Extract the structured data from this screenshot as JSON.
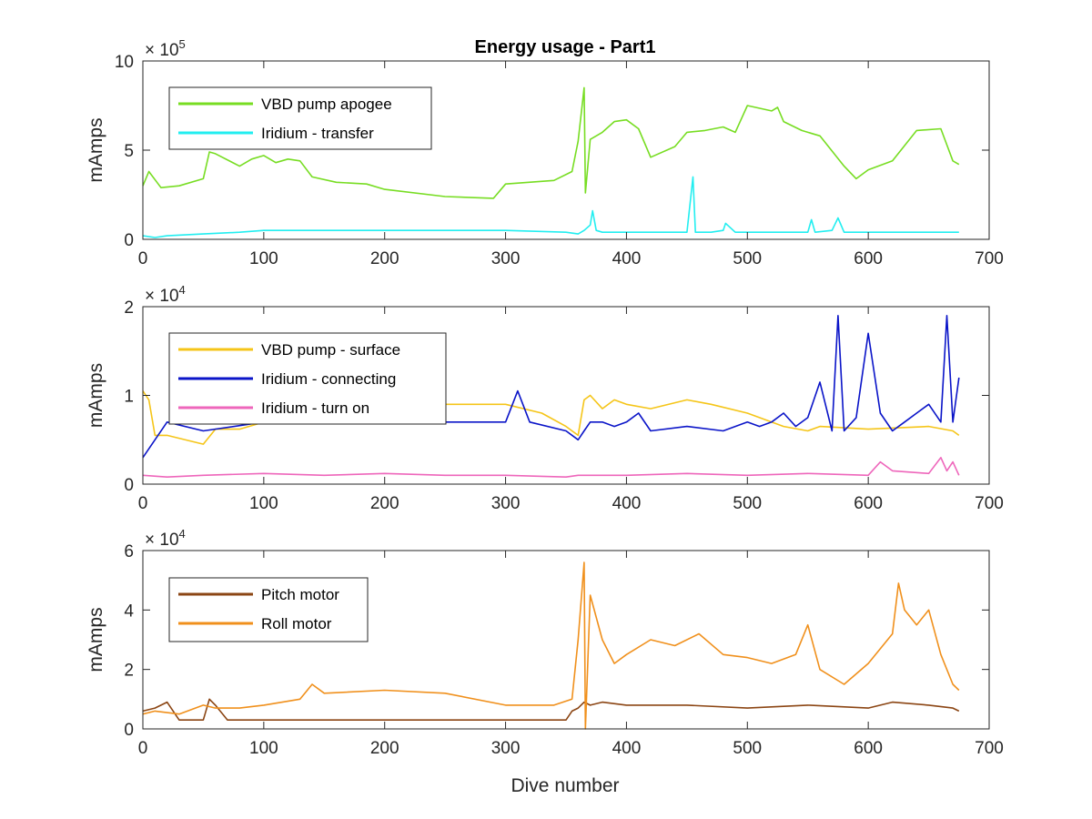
{
  "figure": {
    "title": "Energy usage - Part1",
    "xlabel": "Dive number"
  },
  "chart_data": [
    {
      "type": "line",
      "title": "Energy usage - Part1",
      "xlabel": "",
      "ylabel": "mAmps",
      "exponent_base": "× 10",
      "exponent": "5",
      "xlim": [
        0,
        700
      ],
      "ylim": [
        0,
        10
      ],
      "xticks": [
        0,
        100,
        200,
        300,
        400,
        500,
        600,
        700
      ],
      "xtick_labels": [
        "0",
        "100",
        "200",
        "300",
        "400",
        "500",
        "600",
        "700"
      ],
      "yticks": [
        0,
        5,
        10
      ],
      "ytick_labels": [
        "0",
        "5",
        "10"
      ],
      "legend_position": "top-left",
      "grid": false,
      "series": [
        {
          "name": "VBD pump apogee",
          "color": "#77dd22",
          "x": [
            0,
            5,
            15,
            30,
            50,
            55,
            60,
            80,
            90,
            100,
            110,
            120,
            130,
            140,
            160,
            185,
            200,
            250,
            290,
            300,
            340,
            355,
            360,
            365,
            366,
            370,
            380,
            390,
            400,
            410,
            420,
            440,
            450,
            465,
            480,
            490,
            500,
            520,
            525,
            530,
            545,
            560,
            580,
            590,
            600,
            620,
            640,
            660,
            670,
            675
          ],
          "y": [
            3.0,
            3.8,
            2.9,
            3.0,
            3.4,
            4.9,
            4.8,
            4.1,
            4.5,
            4.7,
            4.3,
            4.5,
            4.4,
            3.5,
            3.2,
            3.1,
            2.8,
            2.4,
            2.3,
            3.1,
            3.3,
            3.8,
            5.5,
            8.5,
            2.6,
            5.6,
            6.0,
            6.6,
            6.7,
            6.2,
            4.6,
            5.2,
            6.0,
            6.1,
            6.3,
            6.0,
            7.5,
            7.2,
            7.4,
            6.6,
            6.1,
            5.8,
            4.1,
            3.4,
            3.9,
            4.4,
            6.1,
            6.2,
            4.4,
            4.2
          ]
        },
        {
          "name": "Iridium - transfer",
          "color": "#22eef0",
          "x": [
            0,
            10,
            20,
            50,
            80,
            100,
            150,
            200,
            250,
            300,
            350,
            360,
            365,
            370,
            372,
            375,
            380,
            390,
            400,
            450,
            455,
            457,
            460,
            470,
            480,
            482,
            490,
            500,
            550,
            553,
            556,
            570,
            575,
            580,
            600,
            650,
            670,
            675
          ],
          "y": [
            0.2,
            0.1,
            0.2,
            0.3,
            0.4,
            0.5,
            0.5,
            0.5,
            0.5,
            0.5,
            0.4,
            0.3,
            0.5,
            0.8,
            1.6,
            0.5,
            0.4,
            0.4,
            0.4,
            0.4,
            3.5,
            0.4,
            0.4,
            0.4,
            0.5,
            0.9,
            0.4,
            0.4,
            0.4,
            1.1,
            0.4,
            0.5,
            1.2,
            0.4,
            0.4,
            0.4,
            0.4,
            0.4
          ]
        }
      ]
    },
    {
      "type": "line",
      "title": "",
      "xlabel": "",
      "ylabel": "mAmps",
      "exponent_base": "× 10",
      "exponent": "4",
      "xlim": [
        0,
        700
      ],
      "ylim": [
        0,
        2
      ],
      "xticks": [
        0,
        100,
        200,
        300,
        400,
        500,
        600,
        700
      ],
      "xtick_labels": [
        "0",
        "100",
        "200",
        "300",
        "400",
        "500",
        "600",
        "700"
      ],
      "yticks": [
        0,
        1,
        2
      ],
      "ytick_labels": [
        "0",
        "1",
        "2"
      ],
      "legend_position": "top-left",
      "grid": false,
      "series": [
        {
          "name": "VBD pump - surface",
          "color": "#f5c518",
          "x": [
            0,
            5,
            10,
            20,
            50,
            60,
            80,
            100,
            150,
            200,
            250,
            300,
            330,
            350,
            355,
            360,
            365,
            370,
            380,
            390,
            400,
            420,
            450,
            470,
            500,
            510,
            530,
            550,
            560,
            600,
            650,
            670,
            675
          ],
          "y": [
            1.05,
            0.95,
            0.55,
            0.55,
            0.45,
            0.62,
            0.62,
            0.7,
            0.8,
            0.85,
            0.9,
            0.9,
            0.8,
            0.65,
            0.6,
            0.55,
            0.95,
            1.0,
            0.85,
            0.95,
            0.9,
            0.85,
            0.95,
            0.9,
            0.8,
            0.75,
            0.65,
            0.6,
            0.65,
            0.62,
            0.65,
            0.6,
            0.55
          ]
        },
        {
          "name": "Iridium - connecting",
          "color": "#0a14c8",
          "x": [
            0,
            20,
            50,
            100,
            150,
            200,
            250,
            300,
            310,
            320,
            350,
            360,
            365,
            370,
            380,
            390,
            400,
            410,
            420,
            450,
            480,
            500,
            510,
            520,
            530,
            540,
            550,
            560,
            570,
            575,
            580,
            590,
            600,
            610,
            620,
            630,
            640,
            650,
            660,
            665,
            670,
            675
          ],
          "y": [
            0.3,
            0.7,
            0.6,
            0.7,
            0.7,
            0.75,
            0.7,
            0.7,
            1.05,
            0.7,
            0.6,
            0.5,
            0.6,
            0.7,
            0.7,
            0.65,
            0.7,
            0.8,
            0.6,
            0.65,
            0.6,
            0.7,
            0.65,
            0.7,
            0.8,
            0.65,
            0.75,
            1.15,
            0.6,
            1.9,
            0.6,
            0.75,
            1.7,
            0.8,
            0.6,
            0.7,
            0.8,
            0.9,
            0.7,
            1.9,
            0.7,
            1.2
          ]
        },
        {
          "name": "Iridium - turn on",
          "color": "#ee66bb",
          "x": [
            0,
            20,
            50,
            100,
            150,
            200,
            250,
            300,
            350,
            360,
            400,
            450,
            500,
            550,
            600,
            610,
            620,
            650,
            660,
            665,
            670,
            675
          ],
          "y": [
            0.1,
            0.08,
            0.1,
            0.12,
            0.1,
            0.12,
            0.1,
            0.1,
            0.08,
            0.1,
            0.1,
            0.12,
            0.1,
            0.12,
            0.1,
            0.25,
            0.15,
            0.12,
            0.3,
            0.15,
            0.25,
            0.1
          ]
        }
      ]
    },
    {
      "type": "line",
      "title": "",
      "xlabel": "Dive number",
      "ylabel": "mAmps",
      "exponent_base": "× 10",
      "exponent": "4",
      "xlim": [
        0,
        700
      ],
      "ylim": [
        0,
        6
      ],
      "xticks": [
        0,
        100,
        200,
        300,
        400,
        500,
        600,
        700
      ],
      "xtick_labels": [
        "0",
        "100",
        "200",
        "300",
        "400",
        "500",
        "600",
        "700"
      ],
      "yticks": [
        0,
        2,
        4,
        6
      ],
      "ytick_labels": [
        "0",
        "2",
        "4",
        "6"
      ],
      "legend_position": "top-left",
      "grid": false,
      "series": [
        {
          "name": "Pitch motor",
          "color": "#8b4513",
          "x": [
            0,
            10,
            20,
            30,
            50,
            55,
            60,
            70,
            100,
            150,
            200,
            250,
            300,
            350,
            355,
            360,
            365,
            370,
            380,
            400,
            450,
            500,
            550,
            600,
            620,
            650,
            670,
            675
          ],
          "y": [
            0.6,
            0.7,
            0.9,
            0.3,
            0.3,
            1.0,
            0.8,
            0.3,
            0.3,
            0.3,
            0.3,
            0.3,
            0.3,
            0.3,
            0.6,
            0.7,
            0.9,
            0.8,
            0.9,
            0.8,
            0.8,
            0.7,
            0.8,
            0.7,
            0.9,
            0.8,
            0.7,
            0.6
          ]
        },
        {
          "name": "Roll motor",
          "color": "#f0901c",
          "x": [
            0,
            10,
            30,
            50,
            60,
            80,
            100,
            130,
            140,
            150,
            200,
            250,
            300,
            340,
            355,
            360,
            365,
            366,
            370,
            380,
            390,
            400,
            420,
            440,
            460,
            480,
            500,
            520,
            540,
            550,
            560,
            580,
            600,
            620,
            625,
            630,
            640,
            650,
            660,
            670,
            675
          ],
          "y": [
            0.5,
            0.6,
            0.5,
            0.8,
            0.7,
            0.7,
            0.8,
            1.0,
            1.5,
            1.2,
            1.3,
            1.2,
            0.8,
            0.8,
            1.0,
            3.0,
            5.6,
            0.0,
            4.5,
            3.0,
            2.2,
            2.5,
            3.0,
            2.8,
            3.2,
            2.5,
            2.4,
            2.2,
            2.5,
            3.5,
            2.0,
            1.5,
            2.2,
            3.2,
            4.9,
            4.0,
            3.5,
            4.0,
            2.5,
            1.5,
            1.3
          ]
        }
      ]
    }
  ]
}
